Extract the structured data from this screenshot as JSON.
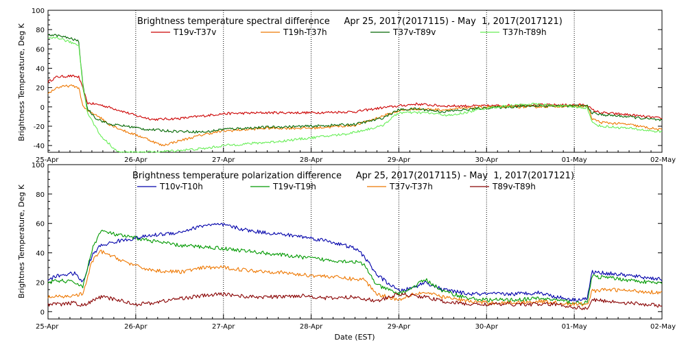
{
  "chart_data": [
    {
      "type": "line",
      "title": "Brightness temperature spectral difference     Apr 25, 2017(2017115) - May  1, 2017(2017121)",
      "ylabel": "Brightness Temperature, Deg K",
      "xlabel": "",
      "xlim": [
        0,
        7
      ],
      "ylim": [
        -47,
        100
      ],
      "yticks": [
        100,
        80,
        60,
        40,
        20,
        0,
        -20,
        -40
      ],
      "xticks": [
        "25-Apr",
        "26-Apr",
        "27-Apr",
        "28-Apr",
        "29-Apr",
        "30-Apr",
        "01-May",
        "02-May"
      ],
      "grid": "vertical dotted",
      "legend_position": "top",
      "series": [
        {
          "name": "T19v-T37v",
          "color": "#cc0000",
          "x": [
            0,
            0.1,
            0.25,
            0.35,
            0.4,
            0.45,
            0.6,
            0.8,
            1.0,
            1.2,
            1.5,
            1.8,
            2.0,
            2.5,
            3.0,
            3.5,
            3.8,
            4.0,
            4.2,
            4.5,
            5.0,
            5.5,
            6.0,
            6.15,
            6.2,
            6.3,
            6.6,
            7.0
          ],
          "y": [
            26,
            31,
            32,
            31,
            18,
            4,
            2,
            -3,
            -9,
            -13,
            -12,
            -9,
            -7,
            -6,
            -6,
            -5,
            -1,
            1,
            3,
            1,
            1,
            2,
            2,
            2,
            -3,
            -6,
            -8,
            -12
          ]
        },
        {
          "name": "T19h-T37h",
          "color": "#ee7700",
          "x": [
            0,
            0.1,
            0.25,
            0.35,
            0.4,
            0.45,
            0.55,
            0.7,
            0.9,
            1.1,
            1.3,
            1.5,
            1.8,
            2.0,
            2.5,
            3.0,
            3.5,
            3.8,
            4.0,
            4.2,
            4.5,
            5.0,
            5.5,
            6.0,
            6.15,
            6.2,
            6.3,
            6.6,
            7.0
          ],
          "y": [
            14,
            20,
            22,
            20,
            0,
            -4,
            -8,
            -18,
            -26,
            -32,
            -40,
            -35,
            -28,
            -25,
            -22,
            -22,
            -19,
            -10,
            -4,
            -2,
            -3,
            0,
            0,
            1,
            1,
            -12,
            -16,
            -18,
            -24
          ]
        },
        {
          "name": "T37v-T89v",
          "color": "#006600",
          "x": [
            0,
            0.1,
            0.25,
            0.35,
            0.4,
            0.45,
            0.55,
            0.7,
            0.9,
            1.1,
            1.4,
            1.8,
            2.0,
            2.5,
            3.0,
            3.5,
            3.8,
            4.0,
            4.2,
            4.5,
            5.0,
            5.5,
            6.0,
            6.15,
            6.2,
            6.3,
            6.6,
            7.0
          ],
          "y": [
            75,
            74,
            71,
            68,
            20,
            -2,
            -12,
            -18,
            -20,
            -23,
            -25,
            -26,
            -23,
            -21,
            -20,
            -18,
            -12,
            -3,
            -2,
            -5,
            -1,
            1,
            1,
            1,
            -6,
            -8,
            -10,
            -14
          ]
        },
        {
          "name": "T37h-T89h",
          "color": "#66ee55",
          "x": [
            0,
            0.1,
            0.25,
            0.35,
            0.4,
            0.45,
            0.6,
            0.8,
            1.0,
            1.2,
            1.5,
            1.8,
            2.0,
            2.3,
            2.6,
            3.0,
            3.4,
            3.8,
            4.0,
            4.3,
            4.6,
            5.0,
            5.5,
            6.0,
            6.15,
            6.2,
            6.3,
            6.6,
            7.0
          ],
          "y": [
            70,
            72,
            67,
            64,
            20,
            -6,
            -30,
            -47,
            -47,
            -47,
            -45,
            -43,
            -40,
            -38,
            -36,
            -32,
            -28,
            -20,
            -6,
            -6,
            -9,
            -1,
            3,
            0,
            -1,
            -16,
            -20,
            -22,
            -26
          ]
        }
      ]
    },
    {
      "type": "line",
      "title": "Brightness temperature polarization difference     Apr 25, 2017(2017115) - May  1, 2017(2017121)",
      "ylabel": "Brightnes Temperature, Deg K",
      "xlabel": "Date (EST)",
      "xlim": [
        0,
        7
      ],
      "ylim": [
        -5,
        100
      ],
      "yticks": [
        100,
        80,
        60,
        40,
        20,
        0
      ],
      "xticks": [
        "25-Apr",
        "26-Apr",
        "27-Apr",
        "28-Apr",
        "29-Apr",
        "30-Apr",
        "01-May",
        "02-May"
      ],
      "grid": "vertical dotted",
      "legend_position": "top",
      "series": [
        {
          "name": "T10v-T10h",
          "color": "#0000aa",
          "x": [
            0,
            0.15,
            0.3,
            0.4,
            0.5,
            0.6,
            0.8,
            1.0,
            1.2,
            1.5,
            1.8,
            2.0,
            2.3,
            2.6,
            2.9,
            3.2,
            3.5,
            3.6,
            3.75,
            4.0,
            4.15,
            4.3,
            4.5,
            4.8,
            5.0,
            5.3,
            5.6,
            5.8,
            6.0,
            6.15,
            6.2,
            6.4,
            7.0
          ],
          "y": [
            22,
            25,
            26,
            20,
            38,
            45,
            48,
            50,
            52,
            54,
            59,
            59,
            55,
            53,
            51,
            48,
            43,
            38,
            25,
            14,
            16,
            20,
            15,
            12,
            12,
            12,
            13,
            10,
            8,
            9,
            27,
            26,
            22
          ]
        },
        {
          "name": "T19v-T19h",
          "color": "#009900",
          "x": [
            0,
            0.15,
            0.3,
            0.4,
            0.5,
            0.6,
            0.8,
            1.0,
            1.2,
            1.5,
            1.8,
            2.0,
            2.3,
            2.6,
            2.9,
            3.2,
            3.5,
            3.6,
            3.75,
            4.0,
            4.15,
            4.3,
            4.5,
            4.8,
            5.0,
            5.3,
            5.6,
            5.8,
            6.0,
            6.15,
            6.2,
            6.4,
            7.0
          ],
          "y": [
            20,
            21,
            20,
            17,
            42,
            55,
            52,
            50,
            48,
            45,
            44,
            43,
            41,
            39,
            37,
            35,
            34,
            32,
            18,
            12,
            16,
            22,
            14,
            9,
            8,
            8,
            9,
            8,
            6,
            6,
            24,
            23,
            19
          ]
        },
        {
          "name": "T37v-T37h",
          "color": "#ee7700",
          "x": [
            0,
            0.15,
            0.3,
            0.4,
            0.5,
            0.6,
            0.8,
            1.0,
            1.2,
            1.5,
            1.8,
            2.0,
            2.3,
            2.6,
            2.9,
            3.2,
            3.5,
            3.6,
            3.75,
            4.0,
            4.15,
            4.3,
            4.5,
            4.8,
            5.0,
            5.3,
            5.6,
            5.8,
            6.0,
            6.15,
            6.2,
            6.4,
            7.0
          ],
          "y": [
            10,
            10,
            11,
            12,
            34,
            41,
            36,
            31,
            28,
            27,
            30,
            30,
            28,
            27,
            25,
            24,
            22,
            22,
            12,
            8,
            12,
            13,
            10,
            7,
            6,
            6,
            7,
            6,
            5,
            5,
            14,
            15,
            13
          ]
        },
        {
          "name": "T89v-T89h",
          "color": "#880000",
          "x": [
            0,
            0.15,
            0.3,
            0.4,
            0.5,
            0.6,
            0.8,
            1.0,
            1.2,
            1.5,
            1.8,
            2.0,
            2.3,
            2.6,
            2.9,
            3.2,
            3.5,
            3.6,
            3.75,
            4.0,
            4.15,
            4.3,
            4.5,
            4.8,
            5.0,
            5.3,
            5.6,
            5.8,
            6.0,
            6.15,
            6.2,
            6.4,
            7.0
          ],
          "y": [
            5,
            5,
            6,
            4,
            7,
            10,
            8,
            5,
            6,
            9,
            11,
            12,
            10,
            10,
            11,
            9,
            10,
            9,
            7,
            12,
            11,
            10,
            7,
            5,
            5,
            5,
            5,
            5,
            3,
            2,
            8,
            7,
            4
          ]
        }
      ]
    }
  ]
}
